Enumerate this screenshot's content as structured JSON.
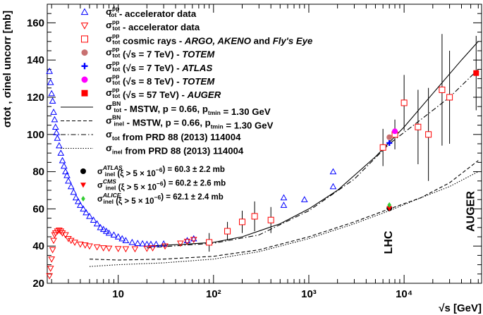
{
  "chart_data": {
    "type": "scatter",
    "title": "",
    "x_label": "√s [GeV]",
    "y_label": "σtot , σinel uncorr [mb]",
    "x_scale": "log",
    "x_range": [
      1.8,
      65000
    ],
    "y_range": [
      20,
      170
    ],
    "x_ticks": [
      "10",
      "10²",
      "10³",
      "10⁴"
    ],
    "y_ticks": [
      20,
      40,
      60,
      80,
      100,
      120,
      140,
      160
    ],
    "annotations": [
      "LHC",
      "AUGER"
    ],
    "legend": {
      "markers": [
        {
          "sym": "σ",
          "sub": "tot",
          "sup": "p̄p",
          "text": " - accelerator data"
        },
        {
          "sym": "σ",
          "sub": "tot",
          "sup": "pp",
          "text": " - accelerator data"
        },
        {
          "sym": "σ",
          "sub": "tot",
          "sup": "pp",
          "text": " cosmic rays - ",
          "it": "ARGO, AKENO",
          "text2": " and ",
          "it2": "Fly's Eye"
        },
        {
          "sym": "σ",
          "sub": "tot",
          "sup": "pp",
          "text": " (√s = 7 TeV) - ",
          "it": "TOTEM"
        },
        {
          "sym": "σ",
          "sub": "tot",
          "sup": "pp",
          "text": " (√s = 7 TeV) - ",
          "it": "ATLAS"
        },
        {
          "sym": "σ",
          "sub": "tot",
          "sup": "pp",
          "text": " (√s = 8 TeV) - ",
          "it": "TOTEM"
        },
        {
          "sym": "σ",
          "sub": "tot",
          "sup": "pp",
          "text": " (√s = 57 TeV) - ",
          "it": "AUGER"
        }
      ],
      "lines": [
        {
          "sym": "σ",
          "sub": "tot",
          "sup": "BN",
          "text": " - MSTW,  p = 0.66, p",
          "sub2": "tmin",
          "text2": " = 1.30 GeV"
        },
        {
          "sym": "σ",
          "sub": "inel",
          "sup": "BN",
          "text": " - MSTW,  p = 0.66, p",
          "sub2": "tmin",
          "text2": " = 1.30 GeV"
        },
        {
          "sym": "σ",
          "sub": "tot",
          "sup": "",
          "text": " from PRD 88 (2013) 114004"
        },
        {
          "sym": "σ",
          "sub": "inel",
          "sup": "",
          "text": " from PRD 88 (2013) 114004"
        }
      ],
      "inel": [
        {
          "sym": "σ",
          "sub": "inel",
          "sup": "ATLAS",
          "text": " (ξ > 5 × 10",
          "exp": "−6",
          "text2": ") = 60.3 ± 2.2 mb"
        },
        {
          "sym": "σ",
          "sub": "inel",
          "sup": "CMS",
          "text": " (ξ > 5 × 10",
          "exp": "−6",
          "text2": ") = 60.2 ± 2.6 mb"
        },
        {
          "sym": "σ",
          "sub": "inel",
          "sup": "ALICE",
          "text": " (ξ > 5 × 10",
          "exp": "−6",
          "text2": ") = 62.1 ± 2.4 mb"
        }
      ]
    },
    "series": [
      {
        "name": "ppbar accelerator data",
        "marker": "triangle-up-open",
        "color": "#0000ff",
        "points": [
          [
            1.9,
            134
          ],
          [
            1.95,
            128
          ],
          [
            2.0,
            122
          ],
          [
            2.05,
            118
          ],
          [
            2.1,
            112
          ],
          [
            2.15,
            108
          ],
          [
            2.2,
            104
          ],
          [
            2.25,
            101
          ],
          [
            2.3,
            98
          ],
          [
            2.4,
            94
          ],
          [
            2.5,
            90
          ],
          [
            2.6,
            86
          ],
          [
            2.7,
            83
          ],
          [
            2.8,
            80
          ],
          [
            2.9,
            78
          ],
          [
            3.0,
            75
          ],
          [
            3.2,
            72
          ],
          [
            3.4,
            69
          ],
          [
            3.6,
            66
          ],
          [
            3.8,
            64
          ],
          [
            4.0,
            62
          ],
          [
            4.3,
            60
          ],
          [
            4.6,
            58
          ],
          [
            5.0,
            56
          ],
          [
            5.5,
            54
          ],
          [
            6.0,
            52
          ],
          [
            6.5,
            50
          ],
          [
            7.0,
            49
          ],
          [
            7.5,
            48
          ],
          [
            8.0,
            47
          ],
          [
            9.0,
            46
          ],
          [
            10,
            45
          ],
          [
            11,
            44
          ],
          [
            12,
            43
          ],
          [
            14,
            42
          ],
          [
            16,
            41.5
          ],
          [
            18,
            41.3
          ],
          [
            20,
            41
          ],
          [
            22,
            41
          ],
          [
            25,
            41
          ],
          [
            30,
            41.2
          ],
          [
            53,
            43
          ],
          [
            62,
            44
          ],
          [
            546,
            62
          ],
          [
            546,
            66
          ],
          [
            900,
            65
          ],
          [
            1800,
            72
          ],
          [
            1800,
            80
          ]
        ]
      },
      {
        "name": "pp accelerator data",
        "marker": "triangle-down-open",
        "color": "#ff0000",
        "points": [
          [
            1.9,
            24
          ],
          [
            1.95,
            28
          ],
          [
            2.0,
            33
          ],
          [
            2.05,
            38
          ],
          [
            2.1,
            43
          ],
          [
            2.15,
            46
          ],
          [
            2.2,
            47
          ],
          [
            2.3,
            48
          ],
          [
            2.4,
            48.5
          ],
          [
            2.5,
            48
          ],
          [
            2.6,
            47
          ],
          [
            2.8,
            46
          ],
          [
            3.0,
            44
          ],
          [
            3.2,
            43
          ],
          [
            3.5,
            42
          ],
          [
            4.0,
            41
          ],
          [
            4.5,
            40.5
          ],
          [
            5.0,
            40
          ],
          [
            6.0,
            39.5
          ],
          [
            7.0,
            39
          ],
          [
            8.0,
            38.8
          ],
          [
            10,
            38.6
          ],
          [
            12,
            38.5
          ],
          [
            15,
            38.5
          ],
          [
            20,
            38.7
          ],
          [
            23,
            39
          ],
          [
            31,
            40
          ],
          [
            45,
            41.5
          ],
          [
            53,
            42.5
          ],
          [
            62,
            43.5
          ]
        ]
      },
      {
        "name": "pp cosmic rays ARGO AKENO Fly's Eye",
        "marker": "square-open",
        "color": "#ff0000",
        "points": [
          [
            90,
            42,
            5
          ],
          [
            140,
            48,
            5
          ],
          [
            200,
            53,
            6
          ],
          [
            270,
            56,
            8
          ],
          [
            400,
            54,
            7
          ],
          [
            6000,
            93,
            10
          ],
          [
            8000,
            100,
            8
          ],
          [
            10000,
            117,
            15
          ],
          [
            14000,
            104,
            20
          ],
          [
            18000,
            100,
            25
          ],
          [
            25000,
            124,
            30
          ],
          [
            30000,
            120,
            25
          ]
        ]
      },
      {
        "name": "TOTEM 7 TeV",
        "marker": "circle",
        "color": "#c87070",
        "points": [
          [
            7000,
            98.5
          ]
        ]
      },
      {
        "name": "ATLAS 7 TeV",
        "marker": "cross",
        "color": "#0000ff",
        "points": [
          [
            7000,
            95.4
          ]
        ]
      },
      {
        "name": "TOTEM 8 TeV",
        "marker": "circle",
        "color": "#ff00ff",
        "points": [
          [
            8000,
            101.7
          ]
        ]
      },
      {
        "name": "AUGER 57 TeV",
        "marker": "square",
        "color": "#ff0000",
        "points": [
          [
            57000,
            133,
            20
          ]
        ]
      },
      {
        "name": "ATLAS inel",
        "marker": "circle",
        "color": "#000000",
        "points": [
          [
            7000,
            60.3
          ]
        ]
      },
      {
        "name": "CMS inel",
        "marker": "triangle-down",
        "color": "#ff0000",
        "points": [
          [
            7000,
            60.2
          ]
        ]
      },
      {
        "name": "ALICE inel",
        "marker": "diamond",
        "color": "#33cc33",
        "points": [
          [
            7000,
            62.1
          ]
        ]
      }
    ],
    "curves": [
      {
        "name": "sigma_tot BN MSTW",
        "style": "solid",
        "points": [
          [
            20,
            40
          ],
          [
            50,
            41
          ],
          [
            100,
            42
          ],
          [
            200,
            45
          ],
          [
            500,
            52
          ],
          [
            1000,
            60
          ],
          [
            2000,
            70
          ],
          [
            5000,
            88
          ],
          [
            10000,
            104
          ],
          [
            20000,
            122
          ],
          [
            40000,
            140
          ],
          [
            60000,
            150
          ]
        ]
      },
      {
        "name": "sigma_inel BN MSTW",
        "style": "dashed",
        "points": [
          [
            5,
            33
          ],
          [
            10,
            32.5
          ],
          [
            30,
            33
          ],
          [
            100,
            34.5
          ],
          [
            300,
            38
          ],
          [
            1000,
            45
          ],
          [
            3000,
            53
          ],
          [
            7000,
            60
          ],
          [
            15000,
            66
          ],
          [
            30000,
            74
          ],
          [
            60000,
            86
          ]
        ]
      },
      {
        "name": "sigma_tot PRD 88",
        "style": "dashdot",
        "points": [
          [
            20,
            39
          ],
          [
            50,
            40.5
          ],
          [
            100,
            41.5
          ],
          [
            300,
            46
          ],
          [
            1000,
            59
          ],
          [
            3000,
            76
          ],
          [
            7000,
            95
          ],
          [
            15000,
            108
          ],
          [
            30000,
            120
          ],
          [
            60000,
            135
          ]
        ]
      },
      {
        "name": "sigma_inel PRD 88",
        "style": "dotted",
        "points": [
          [
            5,
            29
          ],
          [
            10,
            30
          ],
          [
            30,
            31
          ],
          [
            100,
            33
          ],
          [
            300,
            37
          ],
          [
            1000,
            44
          ],
          [
            3000,
            52
          ],
          [
            7000,
            59
          ],
          [
            15000,
            66
          ],
          [
            30000,
            72
          ],
          [
            60000,
            80
          ]
        ]
      }
    ]
  }
}
